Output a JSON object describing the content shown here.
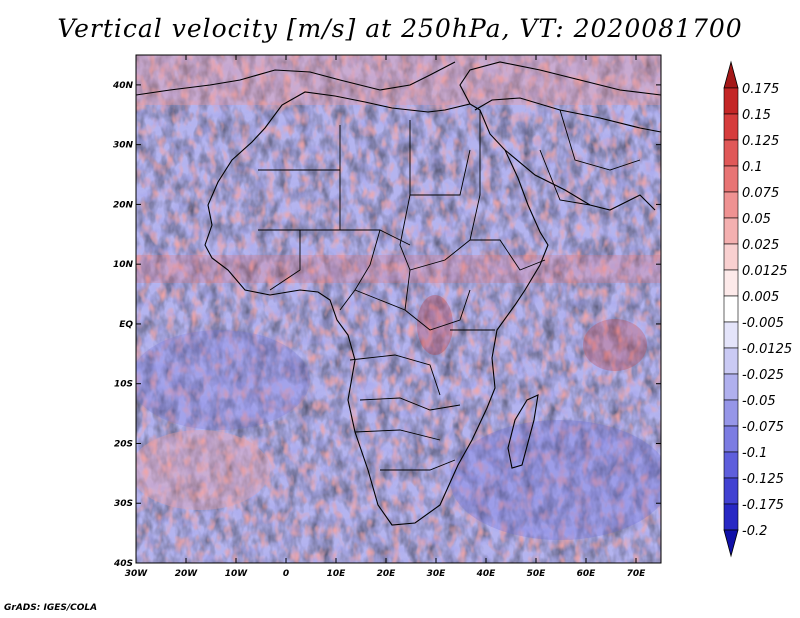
{
  "title": "Vertical velocity [m/s] at 250hPa, VT: 2020081700",
  "credit": "GrADS: IGES/COLA",
  "map": {
    "lon_range": [
      -30,
      75
    ],
    "lat_range": [
      -40,
      45
    ],
    "x_ticks": [
      "30W",
      "20W",
      "10W",
      "0",
      "10E",
      "20E",
      "30E",
      "40E",
      "50E",
      "60E",
      "70E"
    ],
    "x_tick_values": [
      -30,
      -20,
      -10,
      0,
      10,
      20,
      30,
      40,
      50,
      60,
      70
    ],
    "y_ticks": [
      "40S",
      "30S",
      "20S",
      "10S",
      "EQ",
      "10N",
      "20N",
      "30N",
      "40N"
    ],
    "y_tick_values": [
      -40,
      -30,
      -20,
      -10,
      0,
      10,
      20,
      30,
      40
    ],
    "field": "vertical velocity",
    "units": "m/s",
    "level": "250hPa",
    "valid_time": "2020081700"
  },
  "colorbar": {
    "labels": [
      "0.175",
      "0.15",
      "0.125",
      "0.1",
      "0.075",
      "0.05",
      "0.025",
      "0.0125",
      "0.005",
      "-0.005",
      "-0.0125",
      "-0.025",
      "-0.05",
      "-0.075",
      "-0.1",
      "-0.125",
      "-0.175",
      "-0.2"
    ],
    "colors": [
      "#a41818",
      "#c42626",
      "#d63c3c",
      "#e05858",
      "#e87474",
      "#ef9292",
      "#f4b0b0",
      "#f9d0d0",
      "#fdeaea",
      "#ffffff",
      "#e4e4fa",
      "#cacaf4",
      "#b0b0ee",
      "#9696e8",
      "#7c7ce2",
      "#5e5edc",
      "#4242d2",
      "#2828c4",
      "#1010a8"
    ]
  }
}
